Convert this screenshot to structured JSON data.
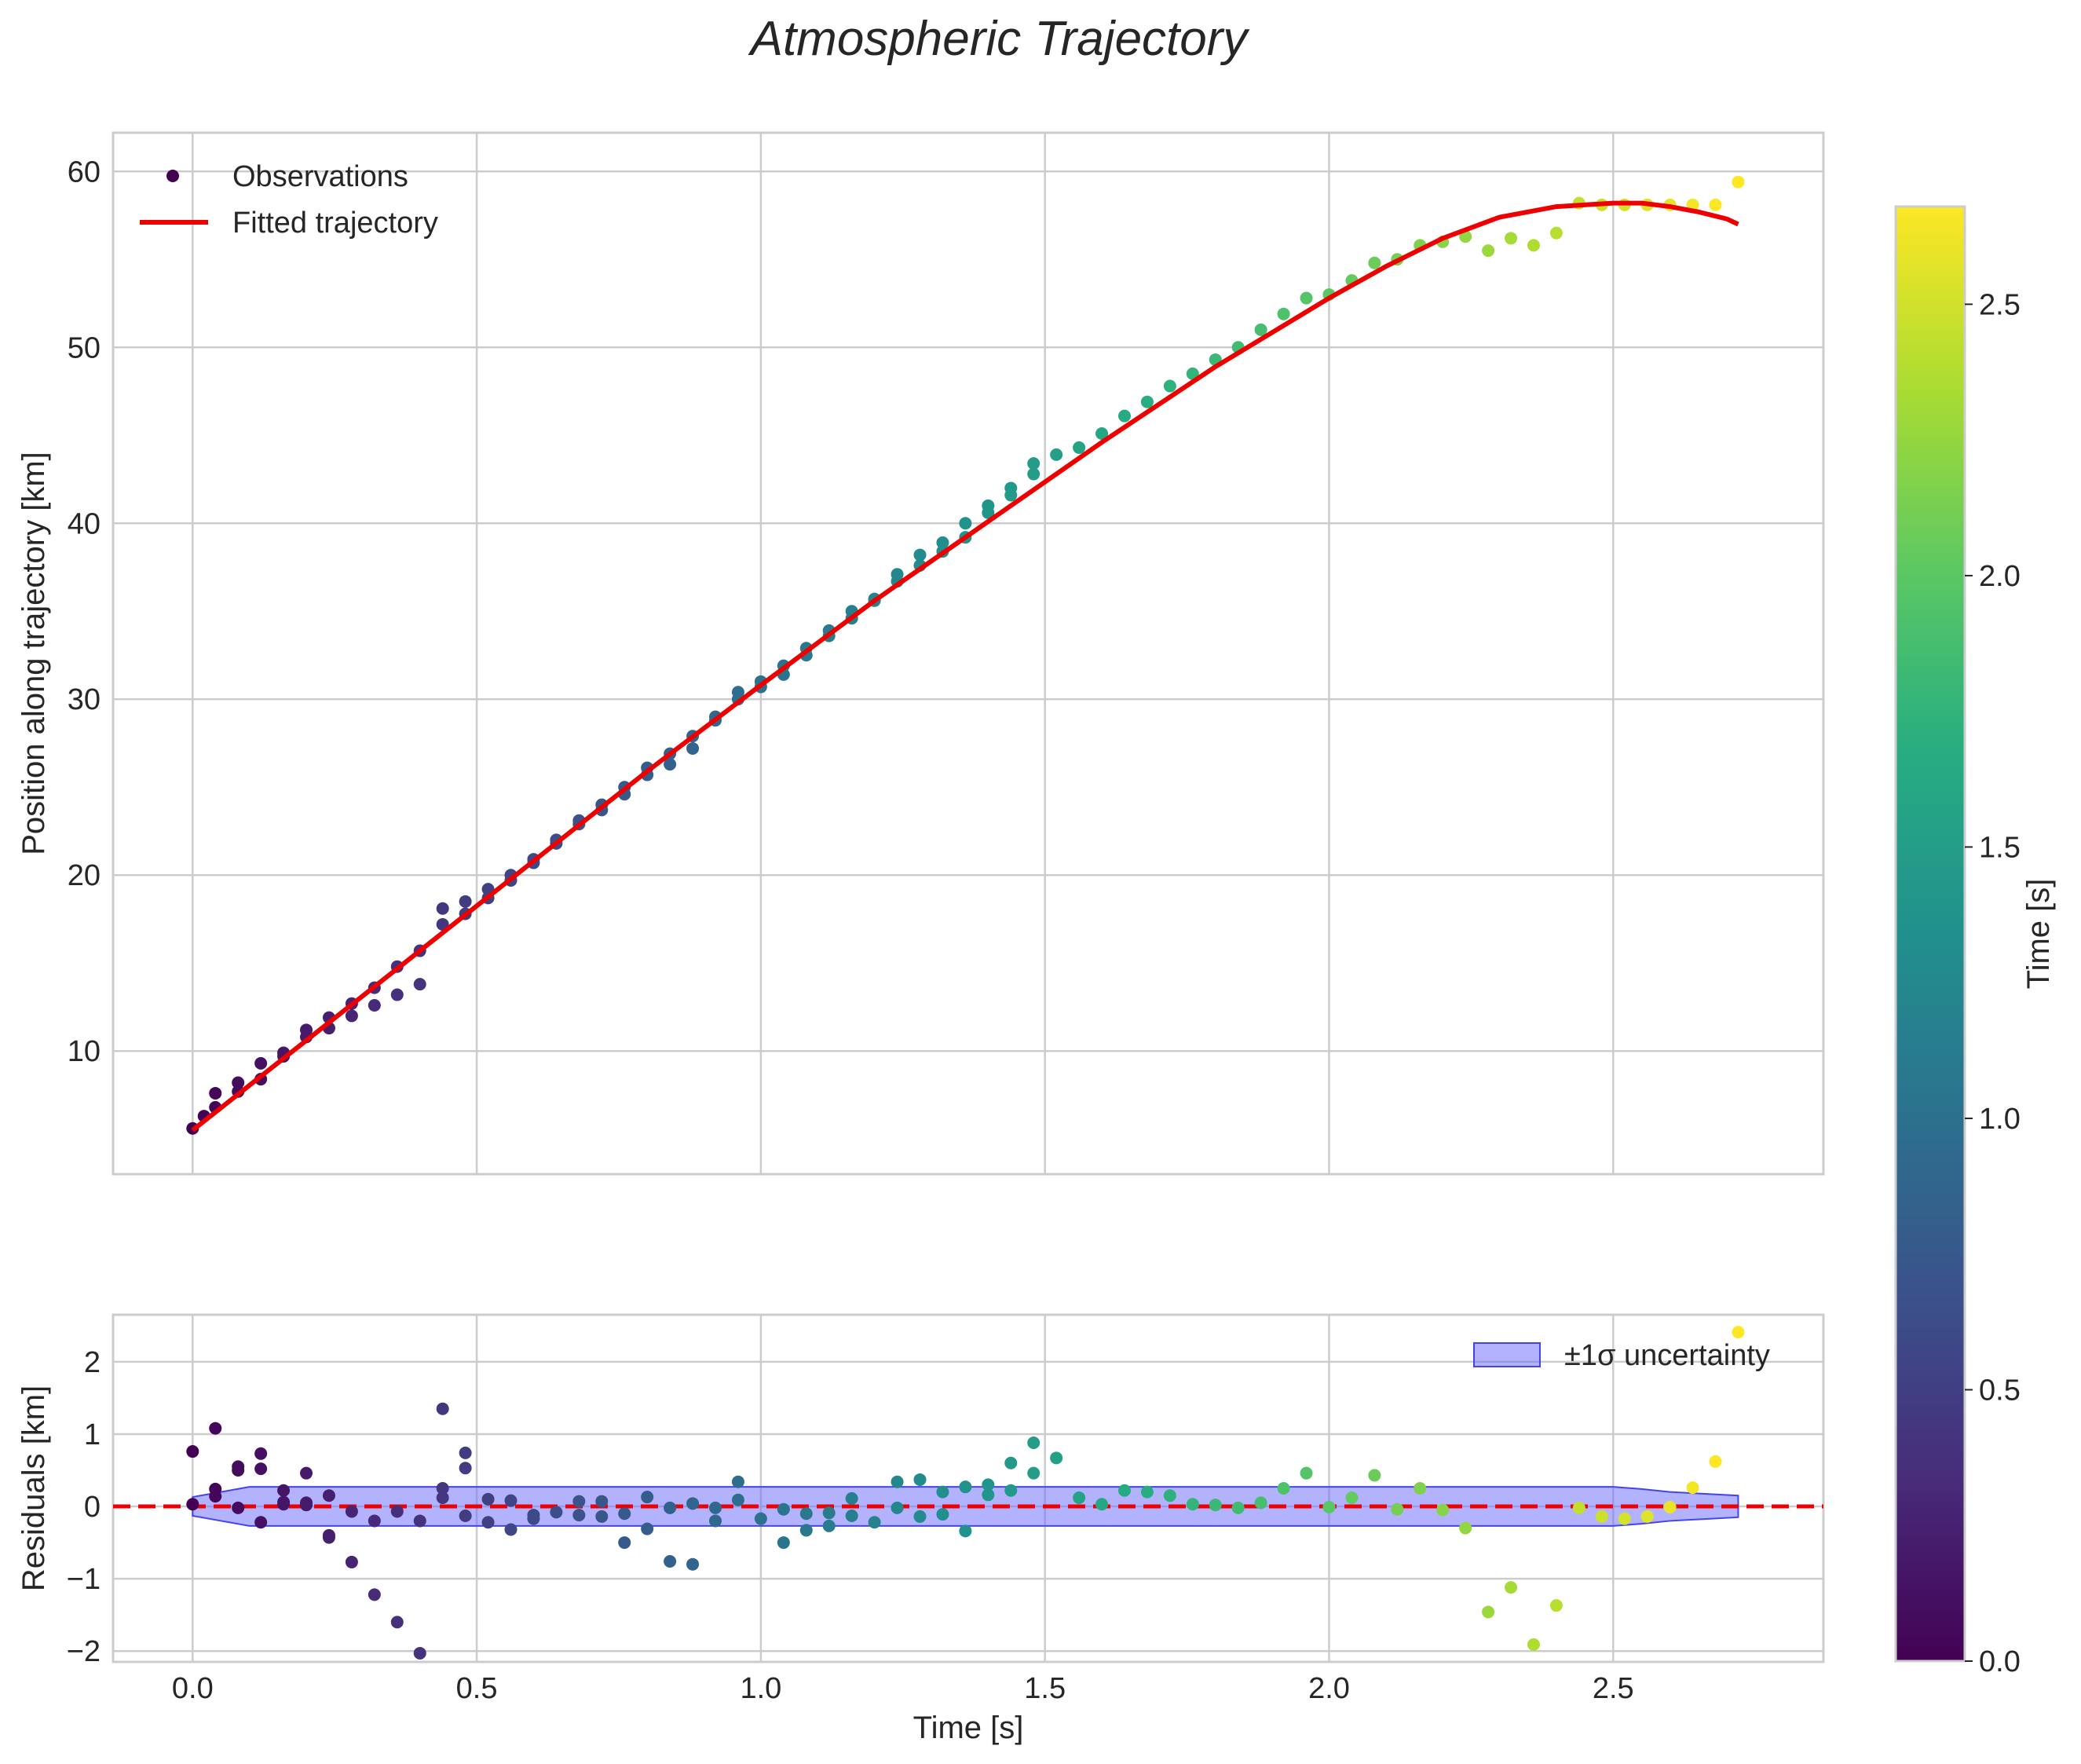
{
  "chart_data": [
    {
      "type": "scatter",
      "title": "Atmospheric Trajectory",
      "xlabel": "",
      "ylabel": "Position along trajectory [km]",
      "xlim": [
        -0.14,
        2.87
      ],
      "ylim": [
        3.0,
        62.2
      ],
      "xticks": [
        0.0,
        0.5,
        1.0,
        1.5,
        2.0,
        2.5
      ],
      "yticks": [
        10,
        20,
        30,
        40,
        50,
        60
      ],
      "ytick_labels": [
        "10",
        "20",
        "30",
        "40",
        "50",
        "60"
      ],
      "grid": true,
      "legend_position": "top-left",
      "legend": [
        {
          "label": "Observations",
          "kind": "marker"
        },
        {
          "label": "Fitted trajectory",
          "kind": "line",
          "color": "#ee0000"
        }
      ],
      "series": [
        {
          "name": "Observations",
          "colormap": "viridis",
          "x": [
            0.0,
            0.02,
            0.04,
            0.04,
            0.08,
            0.08,
            0.12,
            0.12,
            0.16,
            0.16,
            0.2,
            0.2,
            0.24,
            0.24,
            0.28,
            0.28,
            0.32,
            0.32,
            0.36,
            0.36,
            0.4,
            0.4,
            0.44,
            0.44,
            0.48,
            0.48,
            0.52,
            0.52,
            0.56,
            0.56,
            0.6,
            0.6,
            0.64,
            0.64,
            0.68,
            0.68,
            0.72,
            0.72,
            0.76,
            0.76,
            0.8,
            0.8,
            0.84,
            0.84,
            0.88,
            0.88,
            0.92,
            0.92,
            0.96,
            0.96,
            1.0,
            1.0,
            1.04,
            1.04,
            1.08,
            1.08,
            1.12,
            1.12,
            1.16,
            1.16,
            1.2,
            1.2,
            1.24,
            1.24,
            1.28,
            1.28,
            1.32,
            1.32,
            1.36,
            1.36,
            1.4,
            1.4,
            1.44,
            1.44,
            1.48,
            1.48,
            1.52,
            1.56,
            1.6,
            1.64,
            1.68,
            1.72,
            1.76,
            1.8,
            1.84,
            1.88,
            1.92,
            1.96,
            2.0,
            2.04,
            2.08,
            2.12,
            2.16,
            2.2,
            2.24,
            2.28,
            2.32,
            2.36,
            2.4,
            2.44,
            2.48,
            2.52,
            2.56,
            2.6,
            2.64,
            2.68,
            2.72
          ],
          "y": [
            5.6,
            6.3,
            6.8,
            7.6,
            7.7,
            8.2,
            8.4,
            9.3,
            9.7,
            9.9,
            10.8,
            11.2,
            11.3,
            11.9,
            12.0,
            12.7,
            12.6,
            13.6,
            13.2,
            14.8,
            13.8,
            15.7,
            17.2,
            18.1,
            17.8,
            18.5,
            18.7,
            19.2,
            19.7,
            20.0,
            20.7,
            20.9,
            21.8,
            22.0,
            22.9,
            23.1,
            23.7,
            24.0,
            24.6,
            25.0,
            25.7,
            26.1,
            26.3,
            26.9,
            27.2,
            27.9,
            28.8,
            29.0,
            30.0,
            30.4,
            30.7,
            31.0,
            31.4,
            31.9,
            32.5,
            32.9,
            33.6,
            33.9,
            34.6,
            35.0,
            35.6,
            35.7,
            36.7,
            37.1,
            37.6,
            38.2,
            38.4,
            38.9,
            39.2,
            40.0,
            40.6,
            41.0,
            41.6,
            42.0,
            42.8,
            43.4,
            43.9,
            44.3,
            45.1,
            46.1,
            46.9,
            47.8,
            48.5,
            49.3,
            50.0,
            51.0,
            51.9,
            52.8,
            53.0,
            53.8,
            54.8,
            55.0,
            55.8,
            56.0,
            56.3,
            55.5,
            56.2,
            55.8,
            56.5,
            58.2,
            58.1,
            58.1,
            58.1,
            58.1,
            58.1,
            58.1,
            59.4
          ]
        },
        {
          "name": "Fitted trajectory",
          "color": "#ee0000",
          "x": [
            0.0,
            0.2,
            0.4,
            0.6,
            0.8,
            1.0,
            1.2,
            1.4,
            1.6,
            1.8,
            2.0,
            2.1,
            2.2,
            2.3,
            2.4,
            2.5,
            2.55,
            2.6,
            2.65,
            2.7,
            2.72
          ],
          "y": [
            5.5,
            10.6,
            15.7,
            20.8,
            25.9,
            30.8,
            35.6,
            40.1,
            44.6,
            48.9,
            52.8,
            54.6,
            56.2,
            57.4,
            58.0,
            58.2,
            58.2,
            58.0,
            57.7,
            57.3,
            57.0
          ]
        }
      ]
    },
    {
      "type": "scatter",
      "xlabel": "Time [s]",
      "ylabel": "Residuals [km]",
      "xlim": [
        -0.14,
        2.87
      ],
      "ylim": [
        -2.15,
        2.65
      ],
      "xticks": [
        0.0,
        0.5,
        1.0,
        1.5,
        2.0,
        2.5
      ],
      "xtick_labels": [
        "0.0",
        "0.5",
        "1.0",
        "1.5",
        "2.0",
        "2.5"
      ],
      "yticks": [
        -2,
        -1,
        0,
        1,
        2
      ],
      "ytick_labels": [
        "−2",
        "−1",
        "0",
        "1",
        "2"
      ],
      "grid": true,
      "legend_position": "top-right",
      "legend": [
        {
          "label": "±1σ uncertainty",
          "kind": "band",
          "color": "#6666ff"
        }
      ],
      "reference_line": {
        "y": 0,
        "style": "dashed",
        "color": "#ee0000"
      },
      "uncertainty_band": {
        "x": [
          0.0,
          0.05,
          0.1,
          0.5,
          1.0,
          1.5,
          2.0,
          2.5,
          2.55,
          2.6,
          2.72
        ],
        "upper": [
          0.13,
          0.2,
          0.27,
          0.27,
          0.27,
          0.27,
          0.27,
          0.27,
          0.24,
          0.2,
          0.15
        ],
        "lower": [
          -0.13,
          -0.2,
          -0.27,
          -0.27,
          -0.27,
          -0.27,
          -0.27,
          -0.27,
          -0.24,
          -0.2,
          -0.15
        ]
      },
      "series": [
        {
          "name": "Residuals",
          "colormap": "viridis",
          "x": [
            0.0,
            0.0,
            0.04,
            0.04,
            0.04,
            0.08,
            0.08,
            0.08,
            0.12,
            0.12,
            0.12,
            0.16,
            0.16,
            0.16,
            0.2,
            0.2,
            0.2,
            0.24,
            0.24,
            0.24,
            0.28,
            0.28,
            0.32,
            0.32,
            0.36,
            0.36,
            0.4,
            0.4,
            0.44,
            0.44,
            0.44,
            0.48,
            0.48,
            0.48,
            0.52,
            0.52,
            0.56,
            0.56,
            0.6,
            0.6,
            0.64,
            0.68,
            0.68,
            0.72,
            0.72,
            0.76,
            0.76,
            0.8,
            0.8,
            0.84,
            0.84,
            0.88,
            0.88,
            0.92,
            0.92,
            0.96,
            0.96,
            1.0,
            1.04,
            1.04,
            1.08,
            1.08,
            1.12,
            1.12,
            1.16,
            1.16,
            1.2,
            1.24,
            1.24,
            1.28,
            1.28,
            1.32,
            1.32,
            1.36,
            1.36,
            1.4,
            1.4,
            1.44,
            1.44,
            1.48,
            1.48,
            1.52,
            1.56,
            1.6,
            1.64,
            1.68,
            1.72,
            1.76,
            1.8,
            1.84,
            1.88,
            1.92,
            1.96,
            2.0,
            2.04,
            2.08,
            2.12,
            2.16,
            2.2,
            2.24,
            2.28,
            2.32,
            2.36,
            2.4,
            2.44,
            2.48,
            2.52,
            2.56,
            2.6,
            2.64,
            2.68,
            2.72
          ],
          "y": [
            0.76,
            0.03,
            1.08,
            0.24,
            0.14,
            0.55,
            0.5,
            -0.02,
            0.73,
            0.52,
            -0.22,
            0.22,
            0.03,
            0.06,
            0.46,
            0.02,
            0.05,
            -0.43,
            -0.4,
            0.15,
            -0.07,
            -0.77,
            -0.2,
            -1.22,
            -0.07,
            -1.6,
            -0.2,
            -2.03,
            1.35,
            0.25,
            0.12,
            0.74,
            0.53,
            -0.13,
            0.1,
            -0.22,
            -0.32,
            0.08,
            -0.12,
            -0.17,
            -0.08,
            -0.12,
            0.07,
            -0.14,
            0.07,
            -0.1,
            -0.5,
            0.13,
            -0.31,
            -0.02,
            -0.76,
            0.04,
            -0.8,
            -0.2,
            -0.02,
            0.34,
            0.09,
            -0.17,
            -0.04,
            -0.5,
            -0.1,
            -0.33,
            -0.09,
            -0.27,
            0.11,
            -0.13,
            -0.22,
            -0.02,
            0.34,
            0.37,
            -0.14,
            0.2,
            -0.11,
            0.27,
            -0.34,
            0.16,
            0.3,
            0.6,
            0.22,
            0.88,
            0.46,
            0.67,
            0.12,
            0.03,
            0.22,
            0.2,
            0.15,
            0.03,
            0.02,
            -0.02,
            0.05,
            0.25,
            0.46,
            -0.01,
            0.12,
            0.43,
            -0.04,
            0.25,
            -0.05,
            -0.3,
            -1.46,
            -1.12,
            -1.91,
            -1.37,
            -0.02,
            -0.14,
            -0.17,
            -0.14,
            -0.01,
            0.26,
            0.62,
            2.41
          ]
        }
      ]
    },
    {
      "type": "colorbar",
      "label": "Time [s]",
      "colormap": "viridis",
      "range": [
        0.0,
        2.68
      ],
      "ticks": [
        0.0,
        0.5,
        1.0,
        1.5,
        2.0,
        2.5
      ],
      "tick_labels": [
        "0.0",
        "0.5",
        "1.0",
        "1.5",
        "2.0",
        "2.5"
      ]
    }
  ]
}
